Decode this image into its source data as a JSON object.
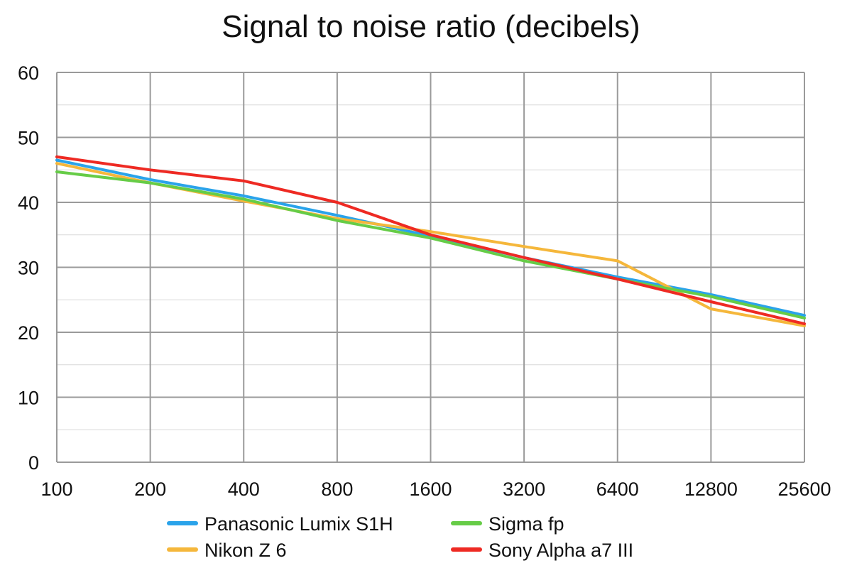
{
  "chart_data": {
    "type": "line",
    "title": "Signal to noise ratio (decibels)",
    "xlabel": "",
    "ylabel": "",
    "categories": [
      "100",
      "200",
      "400",
      "800",
      "1600",
      "3200",
      "6400",
      "12800",
      "25600"
    ],
    "ylim": [
      0,
      60
    ],
    "yticks": [
      0,
      10,
      20,
      30,
      40,
      50,
      60
    ],
    "grid": true,
    "legend_position": "bottom",
    "series": [
      {
        "name": "Panasonic Lumix S1H",
        "color": "#2aa3ea",
        "values": [
          46.5,
          43.5,
          41.0,
          38.0,
          34.8,
          31.5,
          28.5,
          25.8,
          22.6
        ]
      },
      {
        "name": "Nikon Z 6",
        "color": "#f5b73b",
        "values": [
          46.0,
          43.0,
          40.2,
          37.5,
          35.5,
          33.2,
          31.0,
          23.6,
          21.0
        ]
      },
      {
        "name": "Sigma fp",
        "color": "#66cc47",
        "values": [
          44.7,
          43.0,
          40.5,
          37.2,
          34.5,
          31.0,
          28.2,
          25.5,
          22.2
        ]
      },
      {
        "name": "Sony Alpha a7 III",
        "color": "#ee2a23",
        "values": [
          47.0,
          45.0,
          43.3,
          40.0,
          35.0,
          31.5,
          28.2,
          24.7,
          21.3
        ]
      }
    ]
  }
}
